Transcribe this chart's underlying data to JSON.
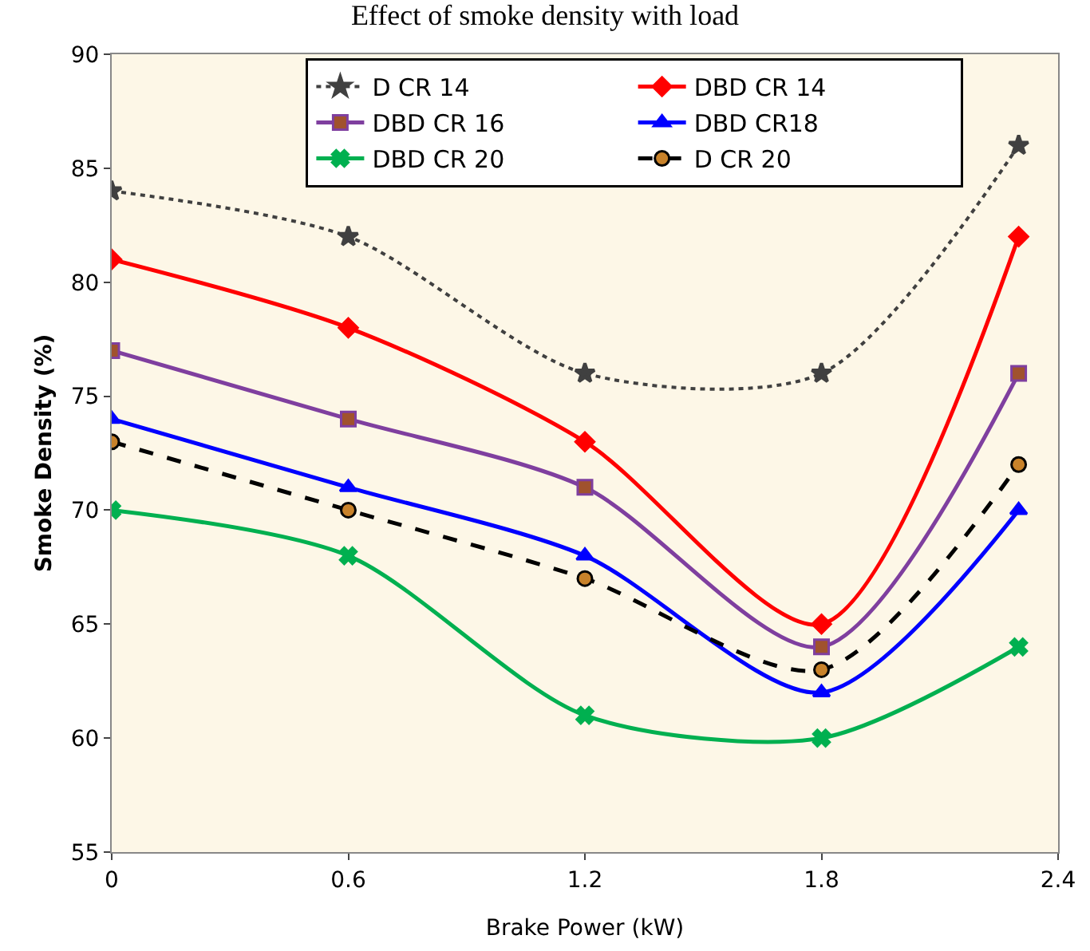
{
  "chart_data": {
    "type": "line",
    "title": "Effect of smoke density with load",
    "xlabel": "Brake Power (kW)",
    "ylabel": "Smoke Density (%)",
    "x": [
      0,
      0.6,
      1.2,
      1.8,
      2.3
    ],
    "series": [
      {
        "name": "D CR 14",
        "color": "#404040",
        "marker": "star",
        "line_style": "dotted",
        "values": [
          84,
          82,
          76,
          76,
          86
        ]
      },
      {
        "name": "DBD CR 14",
        "color": "#ff0000",
        "marker": "diamond",
        "line_style": "solid",
        "values": [
          81,
          78,
          73,
          65,
          82
        ]
      },
      {
        "name": "DBD CR 16",
        "color": "#7f3f9f",
        "marker": "square",
        "line_style": "solid",
        "values": [
          77,
          74,
          71,
          64,
          76
        ]
      },
      {
        "name": "DBD CR18",
        "color": "#0000ff",
        "marker": "triangle",
        "line_style": "solid",
        "values": [
          74,
          71,
          68,
          62,
          70
        ]
      },
      {
        "name": "DBD CR 20",
        "color": "#00b050",
        "marker": "cross",
        "line_style": "solid",
        "values": [
          70,
          68,
          61,
          60,
          64
        ]
      },
      {
        "name": "D CR 20",
        "color": "#000000",
        "marker": "circle",
        "line_style": "dashed",
        "values": [
          73,
          70,
          67,
          63,
          72
        ]
      }
    ],
    "xlim": [
      0,
      2.4
    ],
    "xticks": [
      0,
      0.6,
      1.2,
      1.8,
      2.4
    ],
    "ylim": [
      55,
      90
    ],
    "yticks": [
      55,
      60,
      65,
      70,
      75,
      80,
      85,
      90
    ],
    "grid": false,
    "legend": "top right"
  }
}
